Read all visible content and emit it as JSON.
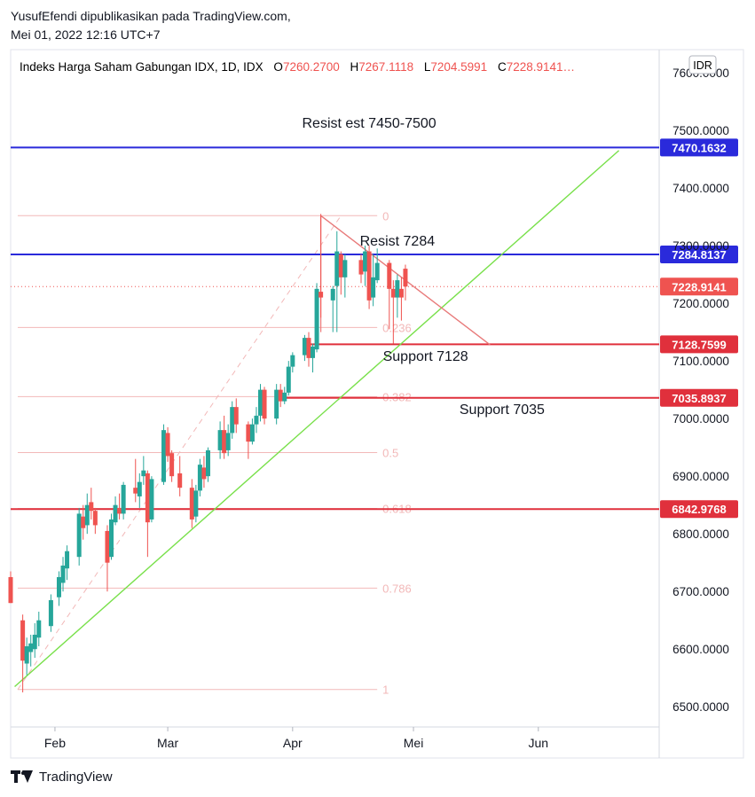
{
  "header": {
    "line1": "YusufEfendi dipublikasikan pada TradingView.com,",
    "line2": "Mei 01, 2022 12:16 UTC+7"
  },
  "symbol": {
    "name": "Indeks Harga Saham Gabungan IDX, 1D, IDX",
    "o_label": "O",
    "o_value": "7260.2700",
    "h_label": "H",
    "h_value": "7267.1118",
    "l_label": "L",
    "l_value": "7204.5991",
    "c_label": "C",
    "c_value": "7228.9141…",
    "currency": "IDR"
  },
  "footer": {
    "brand": "TradingView"
  },
  "colors": {
    "up": "#26a69a",
    "down": "#ef5350",
    "blue_line": "#2a2adb",
    "red_line": "#e0303c",
    "green_trend": "#78e04a",
    "fib": "#f2b8b8",
    "triangle": "#e87a7a",
    "axis_text": "#131722"
  },
  "chart_data": {
    "type": "candlestick",
    "ylim": [
      6465,
      7640
    ],
    "xlim": [
      "2022-01-21",
      "2022-07-01"
    ],
    "y_ticks": [
      "6500.0000",
      "6600.0000",
      "6700.0000",
      "6800.0000",
      "6900.0000",
      "7000.0000",
      "7100.0000",
      "7200.0000",
      "7300.0000",
      "7400.0000",
      "7500.0000",
      "7600.0000"
    ],
    "x_ticks": [
      {
        "date": "2022-02-01",
        "label": "Feb"
      },
      {
        "date": "2022-03-01",
        "label": "Mar"
      },
      {
        "date": "2022-04-01",
        "label": "Apr"
      },
      {
        "date": "2022-05-01",
        "label": "Mei"
      },
      {
        "date": "2022-06-01",
        "label": "Jun"
      }
    ],
    "candles": [
      {
        "d": "2022-01-21",
        "o": 6725,
        "h": 6735,
        "l": 6680,
        "c": 6680
      },
      {
        "d": "2022-01-24",
        "o": 6650,
        "h": 6660,
        "l": 6525,
        "c": 6580
      },
      {
        "d": "2022-01-25",
        "o": 6575,
        "h": 6620,
        "l": 6555,
        "c": 6605
      },
      {
        "d": "2022-01-26",
        "o": 6595,
        "h": 6625,
        "l": 6570,
        "c": 6610
      },
      {
        "d": "2022-01-27",
        "o": 6600,
        "h": 6645,
        "l": 6585,
        "c": 6625
      },
      {
        "d": "2022-01-28",
        "o": 6620,
        "h": 6665,
        "l": 6605,
        "c": 6650
      },
      {
        "d": "2022-01-31",
        "o": 6640,
        "h": 6695,
        "l": 6630,
        "c": 6685
      },
      {
        "d": "2022-02-02",
        "o": 6690,
        "h": 6735,
        "l": 6675,
        "c": 6725
      },
      {
        "d": "2022-02-03",
        "o": 6715,
        "h": 6760,
        "l": 6700,
        "c": 6745
      },
      {
        "d": "2022-02-04",
        "o": 6740,
        "h": 6780,
        "l": 6720,
        "c": 6770
      },
      {
        "d": "2022-02-07",
        "o": 6760,
        "h": 6845,
        "l": 6745,
        "c": 6835
      },
      {
        "d": "2022-02-08",
        "o": 6830,
        "h": 6850,
        "l": 6790,
        "c": 6810
      },
      {
        "d": "2022-02-09",
        "o": 6815,
        "h": 6870,
        "l": 6800,
        "c": 6850
      },
      {
        "d": "2022-02-10",
        "o": 6855,
        "h": 6880,
        "l": 6825,
        "c": 6840
      },
      {
        "d": "2022-02-11",
        "o": 6840,
        "h": 6845,
        "l": 6800,
        "c": 6815
      },
      {
        "d": "2022-02-14",
        "o": 6805,
        "h": 6815,
        "l": 6700,
        "c": 6750
      },
      {
        "d": "2022-02-15",
        "o": 6760,
        "h": 6835,
        "l": 6755,
        "c": 6825
      },
      {
        "d": "2022-02-16",
        "o": 6820,
        "h": 6865,
        "l": 6815,
        "c": 6850
      },
      {
        "d": "2022-02-17",
        "o": 6845,
        "h": 6870,
        "l": 6825,
        "c": 6835
      },
      {
        "d": "2022-02-18",
        "o": 6835,
        "h": 6890,
        "l": 6825,
        "c": 6885
      },
      {
        "d": "2022-02-21",
        "o": 6880,
        "h": 6930,
        "l": 6855,
        "c": 6870
      },
      {
        "d": "2022-02-22",
        "o": 6865,
        "h": 6905,
        "l": 6845,
        "c": 6890
      },
      {
        "d": "2022-02-23",
        "o": 6900,
        "h": 6935,
        "l": 6885,
        "c": 6910
      },
      {
        "d": "2022-02-24",
        "o": 6905,
        "h": 6910,
        "l": 6760,
        "c": 6820
      },
      {
        "d": "2022-02-25",
        "o": 6825,
        "h": 6900,
        "l": 6820,
        "c": 6895
      },
      {
        "d": "2022-02-28",
        "o": 6890,
        "h": 6990,
        "l": 6885,
        "c": 6980
      },
      {
        "d": "2022-03-01",
        "o": 6975,
        "h": 6985,
        "l": 6925,
        "c": 6935
      },
      {
        "d": "2022-03-02",
        "o": 6940,
        "h": 6945,
        "l": 6890,
        "c": 6900
      },
      {
        "d": "2022-03-04",
        "o": 6905,
        "h": 6935,
        "l": 6865,
        "c": 6880
      },
      {
        "d": "2022-03-07",
        "o": 6880,
        "h": 6895,
        "l": 6810,
        "c": 6825
      },
      {
        "d": "2022-03-08",
        "o": 6830,
        "h": 6885,
        "l": 6820,
        "c": 6875
      },
      {
        "d": "2022-03-09",
        "o": 6875,
        "h": 6930,
        "l": 6865,
        "c": 6920
      },
      {
        "d": "2022-03-10",
        "o": 6915,
        "h": 6935,
        "l": 6880,
        "c": 6895
      },
      {
        "d": "2022-03-11",
        "o": 6900,
        "h": 6950,
        "l": 6890,
        "c": 6945
      },
      {
        "d": "2022-03-14",
        "o": 6945,
        "h": 6995,
        "l": 6930,
        "c": 6980
      },
      {
        "d": "2022-03-15",
        "o": 6980,
        "h": 7005,
        "l": 6930,
        "c": 6940
      },
      {
        "d": "2022-03-16",
        "o": 6945,
        "h": 6990,
        "l": 6935,
        "c": 6975
      },
      {
        "d": "2022-03-17",
        "o": 6975,
        "h": 7030,
        "l": 6965,
        "c": 7020
      },
      {
        "d": "2022-03-18",
        "o": 7020,
        "h": 7035,
        "l": 6975,
        "c": 6990
      },
      {
        "d": "2022-03-21",
        "o": 6990,
        "h": 6995,
        "l": 6930,
        "c": 6960
      },
      {
        "d": "2022-03-22",
        "o": 6960,
        "h": 7000,
        "l": 6955,
        "c": 6990
      },
      {
        "d": "2022-03-23",
        "o": 6990,
        "h": 7020,
        "l": 6975,
        "c": 7005
      },
      {
        "d": "2022-03-24",
        "o": 7005,
        "h": 7060,
        "l": 6995,
        "c": 7050
      },
      {
        "d": "2022-03-25",
        "o": 7050,
        "h": 7055,
        "l": 6990,
        "c": 7000
      },
      {
        "d": "2022-03-28",
        "o": 7000,
        "h": 7060,
        "l": 6990,
        "c": 7050
      },
      {
        "d": "2022-03-29",
        "o": 7050,
        "h": 7060,
        "l": 7020,
        "c": 7030
      },
      {
        "d": "2022-03-30",
        "o": 7030,
        "h": 7055,
        "l": 7025,
        "c": 7045
      },
      {
        "d": "2022-03-31",
        "o": 7045,
        "h": 7100,
        "l": 7040,
        "c": 7090
      },
      {
        "d": "2022-04-01",
        "o": 7090,
        "h": 7115,
        "l": 7080,
        "c": 7110
      },
      {
        "d": "2022-04-04",
        "o": 7110,
        "h": 7145,
        "l": 7100,
        "c": 7140
      },
      {
        "d": "2022-04-05",
        "o": 7140,
        "h": 7150,
        "l": 7090,
        "c": 7105
      },
      {
        "d": "2022-04-06",
        "o": 7105,
        "h": 7130,
        "l": 7080,
        "c": 7125
      },
      {
        "d": "2022-04-07",
        "o": 7120,
        "h": 7235,
        "l": 7115,
        "c": 7225
      },
      {
        "d": "2022-04-08",
        "o": 7220,
        "h": 7355,
        "l": 7175,
        "c": 7210
      },
      {
        "d": "2022-04-11",
        "o": 7205,
        "h": 7230,
        "l": 7150,
        "c": 7225
      },
      {
        "d": "2022-04-12",
        "o": 7230,
        "h": 7325,
        "l": 7150,
        "c": 7290
      },
      {
        "d": "2022-04-13",
        "o": 7285,
        "h": 7290,
        "l": 7215,
        "c": 7245
      },
      {
        "d": "2022-04-14",
        "o": 7245,
        "h": 7285,
        "l": 7210,
        "c": 7275
      },
      {
        "d": "2022-04-18",
        "o": 7275,
        "h": 7285,
        "l": 7235,
        "c": 7250
      },
      {
        "d": "2022-04-19",
        "o": 7255,
        "h": 7300,
        "l": 7230,
        "c": 7290
      },
      {
        "d": "2022-04-20",
        "o": 7290,
        "h": 7300,
        "l": 7190,
        "c": 7205
      },
      {
        "d": "2022-04-21",
        "o": 7210,
        "h": 7285,
        "l": 7195,
        "c": 7245
      },
      {
        "d": "2022-04-22",
        "o": 7240,
        "h": 7295,
        "l": 7235,
        "c": 7270
      },
      {
        "d": "2022-04-25",
        "o": 7270,
        "h": 7275,
        "l": 7155,
        "c": 7225
      },
      {
        "d": "2022-04-26",
        "o": 7225,
        "h": 7240,
        "l": 7130,
        "c": 7210
      },
      {
        "d": "2022-04-27",
        "o": 7210,
        "h": 7250,
        "l": 7175,
        "c": 7240
      },
      {
        "d": "2022-04-28",
        "o": 7225,
        "h": 7245,
        "l": 7170,
        "c": 7210
      },
      {
        "d": "2022-04-29",
        "o": 7260,
        "h": 7267,
        "l": 7205,
        "c": 7229
      }
    ],
    "horizontal_levels": [
      {
        "value": 7470.1632,
        "label": "7470.1632",
        "color": "blue",
        "from": "2022-01-21"
      },
      {
        "value": 7284.8137,
        "label": "7284.8137",
        "color": "blue",
        "from": "2022-01-21"
      },
      {
        "value": 7128.7599,
        "label": "7128.7599",
        "color": "red",
        "from": "2022-04-05"
      },
      {
        "value": 7035.8937,
        "label": "7035.8937",
        "color": "red",
        "from": "2022-03-29"
      },
      {
        "value": 6842.9768,
        "label": "6842.9768",
        "color": "red",
        "from": "2022-01-21"
      }
    ],
    "last_price": {
      "value": 7228.9141,
      "label": "7228.9141"
    },
    "annotations": [
      {
        "text": "Resist est 7450-7500",
        "date": "2022-04-20",
        "value": 7505
      },
      {
        "text": "Resist 7284",
        "date": "2022-04-27",
        "value": 7300
      },
      {
        "text": "Support 7128",
        "date": "2022-05-04",
        "value": 7100
      },
      {
        "text": "Support 7035",
        "date": "2022-05-23",
        "value": 7008
      }
    ],
    "fibonacci": {
      "from_date": "2022-01-21",
      "to_date": "2022-04-22",
      "low": 6530,
      "high": 7352,
      "levels": [
        {
          "ratio": 0,
          "label": "0"
        },
        {
          "ratio": 0.236,
          "label": "0.236"
        },
        {
          "ratio": 0.382,
          "label": "0.382"
        },
        {
          "ratio": 0.5,
          "label": "0.5"
        },
        {
          "ratio": 0.618,
          "label": "0.618"
        },
        {
          "ratio": 0.786,
          "label": "0.786"
        },
        {
          "ratio": 1,
          "label": "1"
        }
      ]
    },
    "trend_line": {
      "from": {
        "date": "2022-01-22",
        "value": 6535
      },
      "to": {
        "date": "2022-06-21",
        "value": 7465
      }
    },
    "triangle_line": {
      "from": {
        "date": "2022-04-08",
        "value": 7352
      },
      "to": {
        "date": "2022-05-20",
        "value": 7128
      }
    }
  }
}
